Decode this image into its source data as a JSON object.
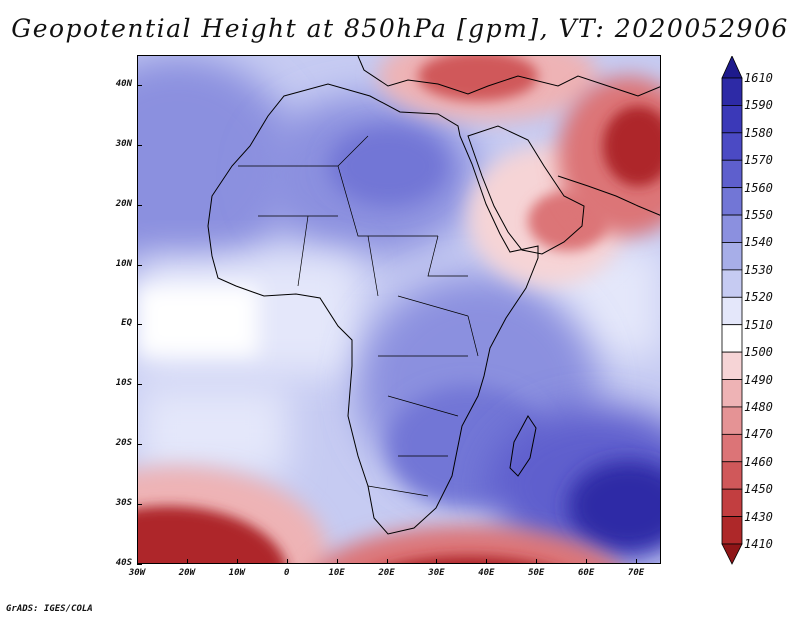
{
  "title": "Geopotential Height at 850hPa [gpm], VT: 2020052906",
  "footer": "GrADS: IGES/COLA",
  "map": {
    "region": "Africa and Arabian Peninsula",
    "lat_labels": [
      "40N",
      "30N",
      "20N",
      "10N",
      "EQ",
      "10S",
      "20S",
      "30S",
      "40S"
    ],
    "lon_labels": [
      "30W",
      "20W",
      "10W",
      "0",
      "10E",
      "20E",
      "30E",
      "40E",
      "50E",
      "60E",
      "70E"
    ],
    "lat_values": [
      40,
      30,
      20,
      10,
      0,
      -10,
      -20,
      -30,
      -40
    ],
    "lon_values": [
      -30,
      -20,
      -10,
      0,
      10,
      20,
      30,
      40,
      50,
      60,
      70
    ],
    "lat_range": [
      -40,
      45
    ],
    "lon_range": [
      -30,
      75
    ]
  },
  "colorbar": {
    "labels": [
      "1610",
      "1590",
      "1580",
      "1570",
      "1560",
      "1550",
      "1540",
      "1530",
      "1520",
      "1510",
      "1500",
      "1490",
      "1480",
      "1470",
      "1460",
      "1450",
      "1430",
      "1410"
    ],
    "colors": [
      "#1e1a8c",
      "#2d2aa6",
      "#3b39b8",
      "#4b4ac4",
      "#5e5fcd",
      "#7276d6",
      "#8b90df",
      "#a7aee8",
      "#c6cbf2",
      "#e4e7fa",
      "#ffffff",
      "#f6d4d6",
      "#eeb3b5",
      "#e59395",
      "#dc7477",
      "#d0585a",
      "#c23e40",
      "#ae2829",
      "#8f1517"
    ]
  }
}
